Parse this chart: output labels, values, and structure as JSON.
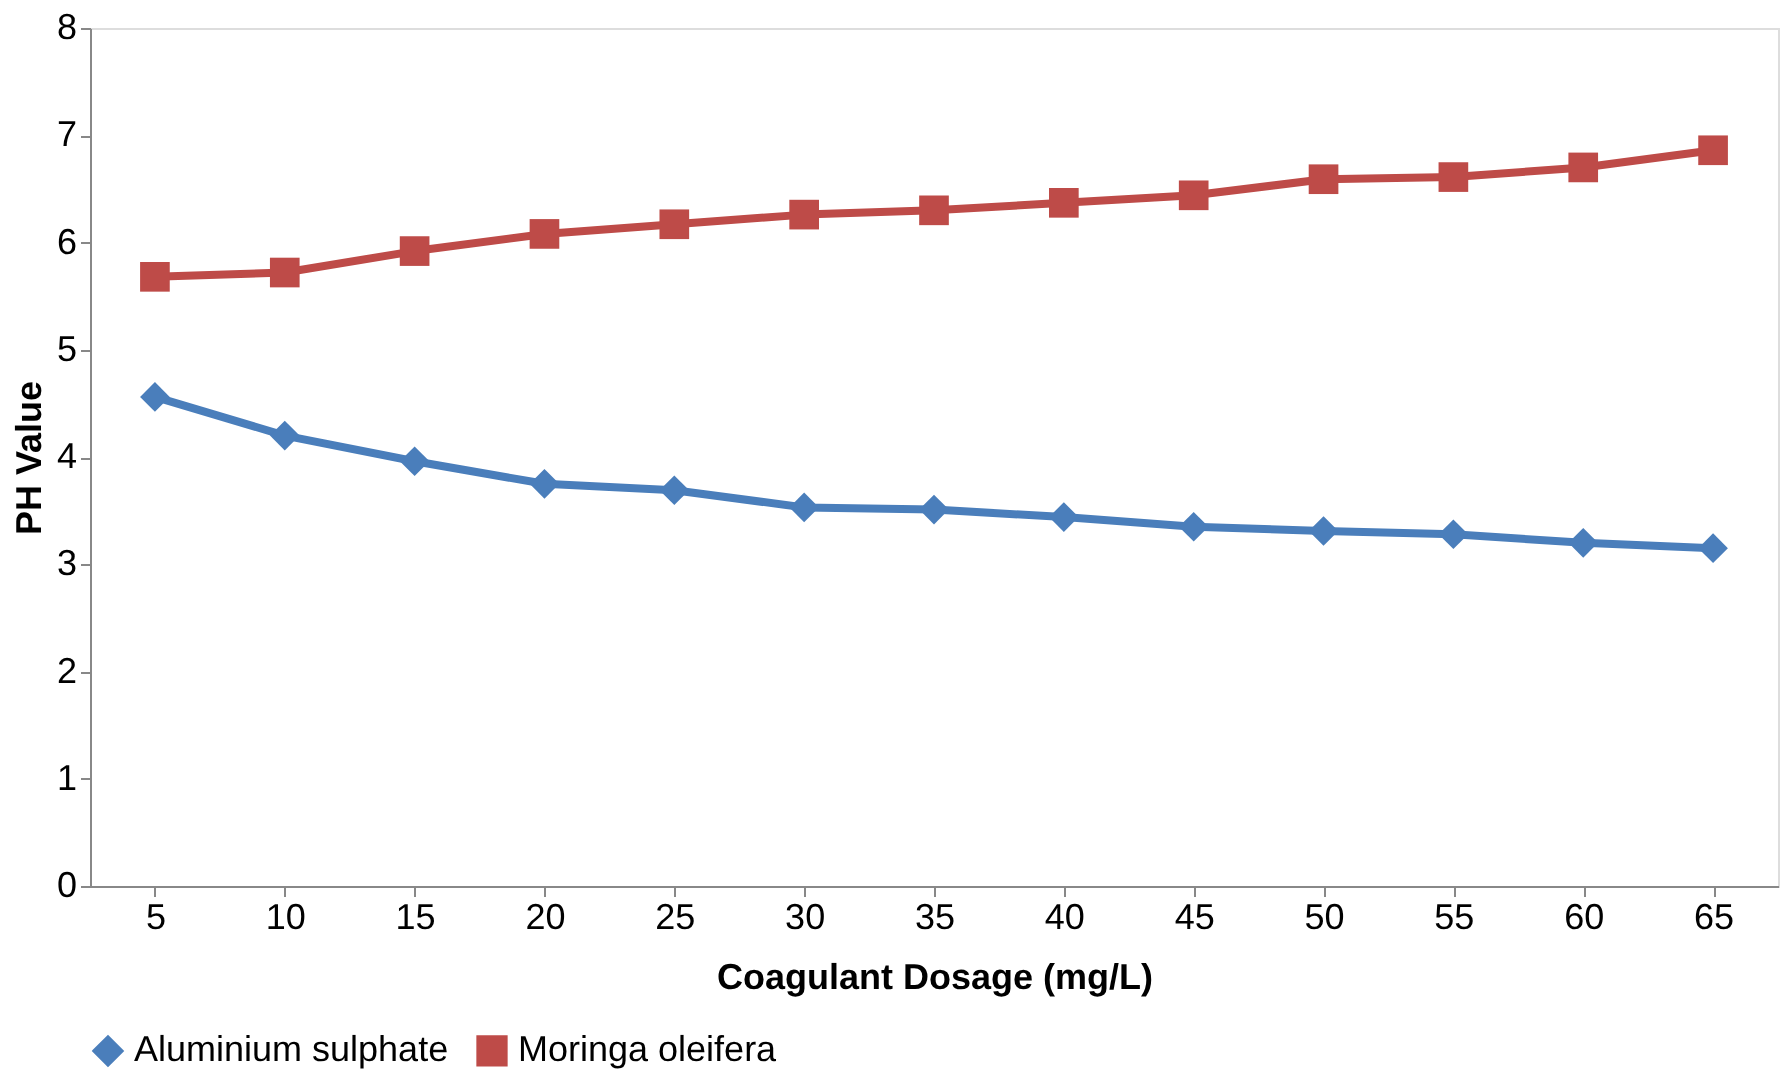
{
  "chart_data": {
    "type": "line",
    "xlabel": "Coagulant Dosage (mg/L)",
    "ylabel": "PH Value",
    "categories": [
      "5",
      "10",
      "15",
      "20",
      "25",
      "30",
      "35",
      "40",
      "45",
      "50",
      "55",
      "60",
      "65"
    ],
    "series": [
      {
        "name": "Aluminium sulphate",
        "color": "#4a7ebb",
        "marker": "diamond",
        "values": [
          4.56,
          4.2,
          3.96,
          3.75,
          3.69,
          3.53,
          3.51,
          3.44,
          3.35,
          3.31,
          3.28,
          3.2,
          3.15
        ]
      },
      {
        "name": "Moringa oleifera",
        "color": "#be4b48",
        "marker": "square",
        "values": [
          5.68,
          5.72,
          5.92,
          6.08,
          6.17,
          6.26,
          6.3,
          6.37,
          6.44,
          6.59,
          6.61,
          6.7,
          6.86
        ]
      }
    ],
    "ylim": [
      0,
      8
    ],
    "yticks": [
      0,
      1,
      2,
      3,
      4,
      5,
      6,
      7,
      8
    ],
    "grid": false,
    "legend": "bottom",
    "line_style": "solid"
  }
}
